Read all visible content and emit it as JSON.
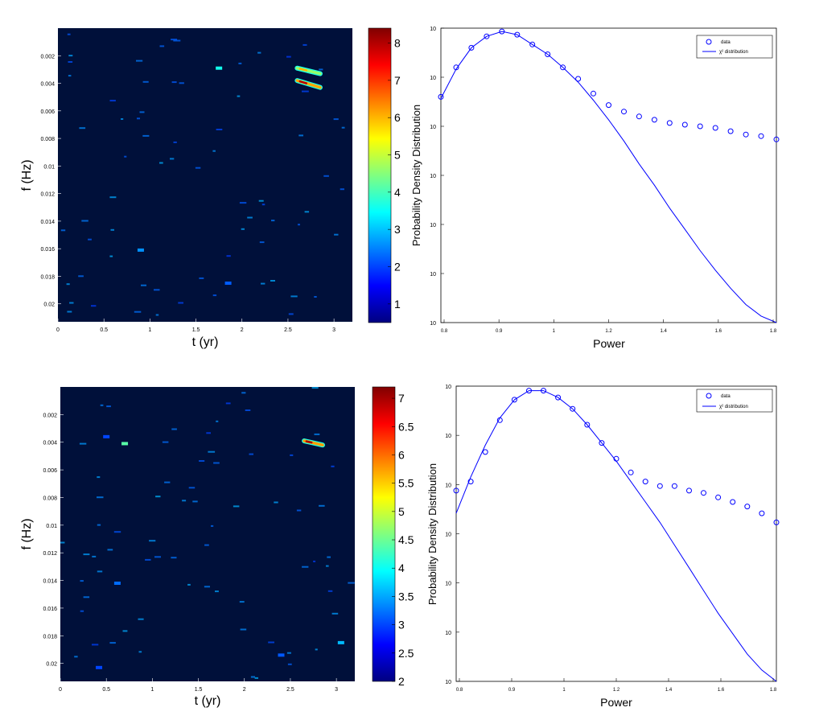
{
  "colors": {
    "background": "#00103a",
    "marker": "#0000ff",
    "curve": "#0000ff",
    "colormap": [
      "#000080",
      "#0000ff",
      "#0080ff",
      "#00ffff",
      "#80ff80",
      "#ffff00",
      "#ff8000",
      "#ff0000",
      "#800000"
    ]
  },
  "chart_data": [
    {
      "type": "heatmap",
      "xlabel": "t (yr)",
      "ylabel": "f (Hz)",
      "xlim": [
        0,
        3.2
      ],
      "ylim": [
        0.0213,
        0
      ],
      "xticks": [
        "0",
        "0.5",
        "1",
        "1.5",
        "2",
        "2.5",
        "3"
      ],
      "yticks": [
        "0.002",
        "0.004",
        "0.006",
        "0.008",
        "0.01",
        "0.012",
        "0.014",
        "0.016",
        "0.018",
        "0.02"
      ],
      "colorbar": {
        "range": [
          0.5,
          8.4
        ],
        "ticks": [
          "1",
          "2",
          "3",
          "4",
          "5",
          "6",
          "7",
          "8"
        ]
      },
      "ridges": [
        {
          "t_start": 2.6,
          "t_end": 2.85,
          "f_start": 0.0029,
          "f_end": 0.0033,
          "peak": 6.0
        },
        {
          "t_start": 2.6,
          "t_end": 2.85,
          "f_start": 0.0038,
          "f_end": 0.0043,
          "peak": 8.0
        }
      ],
      "spots": [
        {
          "t": 1.75,
          "f": 0.0029,
          "value": 3.6
        },
        {
          "t": 0.9,
          "f": 0.0161,
          "value": 2.6
        },
        {
          "t": 1.85,
          "f": 0.0185,
          "value": 2.2
        }
      ]
    },
    {
      "type": "scatter",
      "xlabel": "Power",
      "ylabel": "Probability Density Distribution",
      "xlim": [
        0.8,
        1.9
      ],
      "ylim": [
        -18,
        0
      ],
      "yscale": "log",
      "xticks": [
        "0.8",
        "0.9",
        "1",
        "1.2",
        "1.4",
        "1.6",
        "1.8"
      ],
      "legend": {
        "position": "top-right",
        "entries": [
          "data",
          "χ² distribution"
        ]
      },
      "series": [
        {
          "name": "data",
          "marker": "circle",
          "x": [
            0.8,
            0.85,
            0.9,
            0.95,
            1.0,
            1.05,
            1.1,
            1.15,
            1.2,
            1.25,
            1.3,
            1.35,
            1.4,
            1.45,
            1.5,
            1.55,
            1.6,
            1.65,
            1.7,
            1.75,
            1.8,
            1.85,
            1.9
          ],
          "y": [
            -4.2,
            -2.4,
            -1.2,
            -0.5,
            -0.2,
            -0.4,
            -1.0,
            -1.6,
            -2.4,
            -3.1,
            -4.0,
            -4.7,
            -5.1,
            -5.4,
            -5.6,
            -5.8,
            -5.9,
            -6.0,
            -6.1,
            -6.3,
            -6.5,
            -6.6,
            -6.8
          ]
        },
        {
          "name": "χ² distribution",
          "line": true,
          "x": [
            0.8,
            0.85,
            0.9,
            0.95,
            1.0,
            1.05,
            1.1,
            1.15,
            1.2,
            1.25,
            1.3,
            1.35,
            1.4,
            1.45,
            1.5,
            1.55,
            1.6,
            1.65,
            1.7,
            1.75,
            1.8,
            1.85,
            1.9
          ],
          "y": [
            -4.3,
            -2.5,
            -1.2,
            -0.5,
            -0.2,
            -0.4,
            -1.0,
            -1.6,
            -2.4,
            -3.3,
            -4.4,
            -5.6,
            -6.9,
            -8.3,
            -9.6,
            -11.0,
            -12.3,
            -13.6,
            -14.8,
            -15.9,
            -16.9,
            -17.6,
            -18.0
          ]
        }
      ]
    },
    {
      "type": "heatmap",
      "xlabel": "t (yr)",
      "ylabel": "f (Hz)",
      "xlim": [
        0,
        3.2
      ],
      "ylim": [
        0.0213,
        0
      ],
      "xticks": [
        "0",
        "0.5",
        "1",
        "1.5",
        "2",
        "2.5",
        "3"
      ],
      "yticks": [
        "0.002",
        "0.004",
        "0.006",
        "0.008",
        "0.01",
        "0.012",
        "0.014",
        "0.016",
        "0.018",
        "0.02"
      ],
      "colorbar": {
        "range": [
          2,
          7.2
        ],
        "ticks": [
          "2",
          "2.5",
          "3",
          "3.5",
          "4",
          "4.5",
          "5",
          "5.5",
          "6",
          "6.5",
          "7"
        ]
      },
      "ridges": [
        {
          "t_start": 2.65,
          "t_end": 2.85,
          "f_start": 0.0039,
          "f_end": 0.0042,
          "peak": 7.0
        }
      ],
      "spots": [
        {
          "t": 0.7,
          "f": 0.0041,
          "value": 4.4
        },
        {
          "t": 0.5,
          "f": 0.0036,
          "value": 3.0
        },
        {
          "t": 3.05,
          "f": 0.0185,
          "value": 3.6
        },
        {
          "t": 0.62,
          "f": 0.0142,
          "value": 3.2
        },
        {
          "t": 0.42,
          "f": 0.0203,
          "value": 3.0
        },
        {
          "t": 2.4,
          "f": 0.0194,
          "value": 3.1
        }
      ]
    },
    {
      "type": "scatter",
      "xlabel": "Power",
      "ylabel": "Probability Density Distribution",
      "xlim": [
        0.8,
        1.9
      ],
      "ylim": [
        -13,
        0
      ],
      "yscale": "log",
      "xticks": [
        "0.8",
        "0.9",
        "1",
        "1.2",
        "1.4",
        "1.6",
        "1.8"
      ],
      "legend": {
        "position": "top-right",
        "entries": [
          "data",
          "χ² distribution"
        ]
      },
      "series": [
        {
          "name": "data",
          "marker": "circle",
          "x": [
            0.8,
            0.85,
            0.9,
            0.95,
            1.0,
            1.05,
            1.1,
            1.15,
            1.2,
            1.25,
            1.3,
            1.35,
            1.4,
            1.45,
            1.5,
            1.55,
            1.6,
            1.65,
            1.7,
            1.75,
            1.8,
            1.85,
            1.9
          ],
          "y": [
            -4.6,
            -4.2,
            -2.9,
            -1.5,
            -0.6,
            -0.2,
            -0.2,
            -0.5,
            -1.0,
            -1.7,
            -2.5,
            -3.2,
            -3.8,
            -4.2,
            -4.4,
            -4.4,
            -4.6,
            -4.7,
            -4.9,
            -5.1,
            -5.3,
            -5.6,
            -6.0
          ]
        },
        {
          "name": "χ² distribution",
          "line": true,
          "x": [
            0.8,
            0.85,
            0.9,
            0.95,
            1.0,
            1.05,
            1.1,
            1.15,
            1.2,
            1.25,
            1.3,
            1.35,
            1.4,
            1.45,
            1.5,
            1.55,
            1.6,
            1.65,
            1.7,
            1.75,
            1.8,
            1.85,
            1.9
          ],
          "y": [
            -5.6,
            -4.0,
            -2.6,
            -1.4,
            -0.6,
            -0.2,
            -0.2,
            -0.5,
            -1.0,
            -1.7,
            -2.5,
            -3.3,
            -4.2,
            -5.1,
            -6.0,
            -7.0,
            -8.0,
            -9.0,
            -10.0,
            -10.9,
            -11.8,
            -12.5,
            -13.0
          ]
        }
      ]
    }
  ]
}
